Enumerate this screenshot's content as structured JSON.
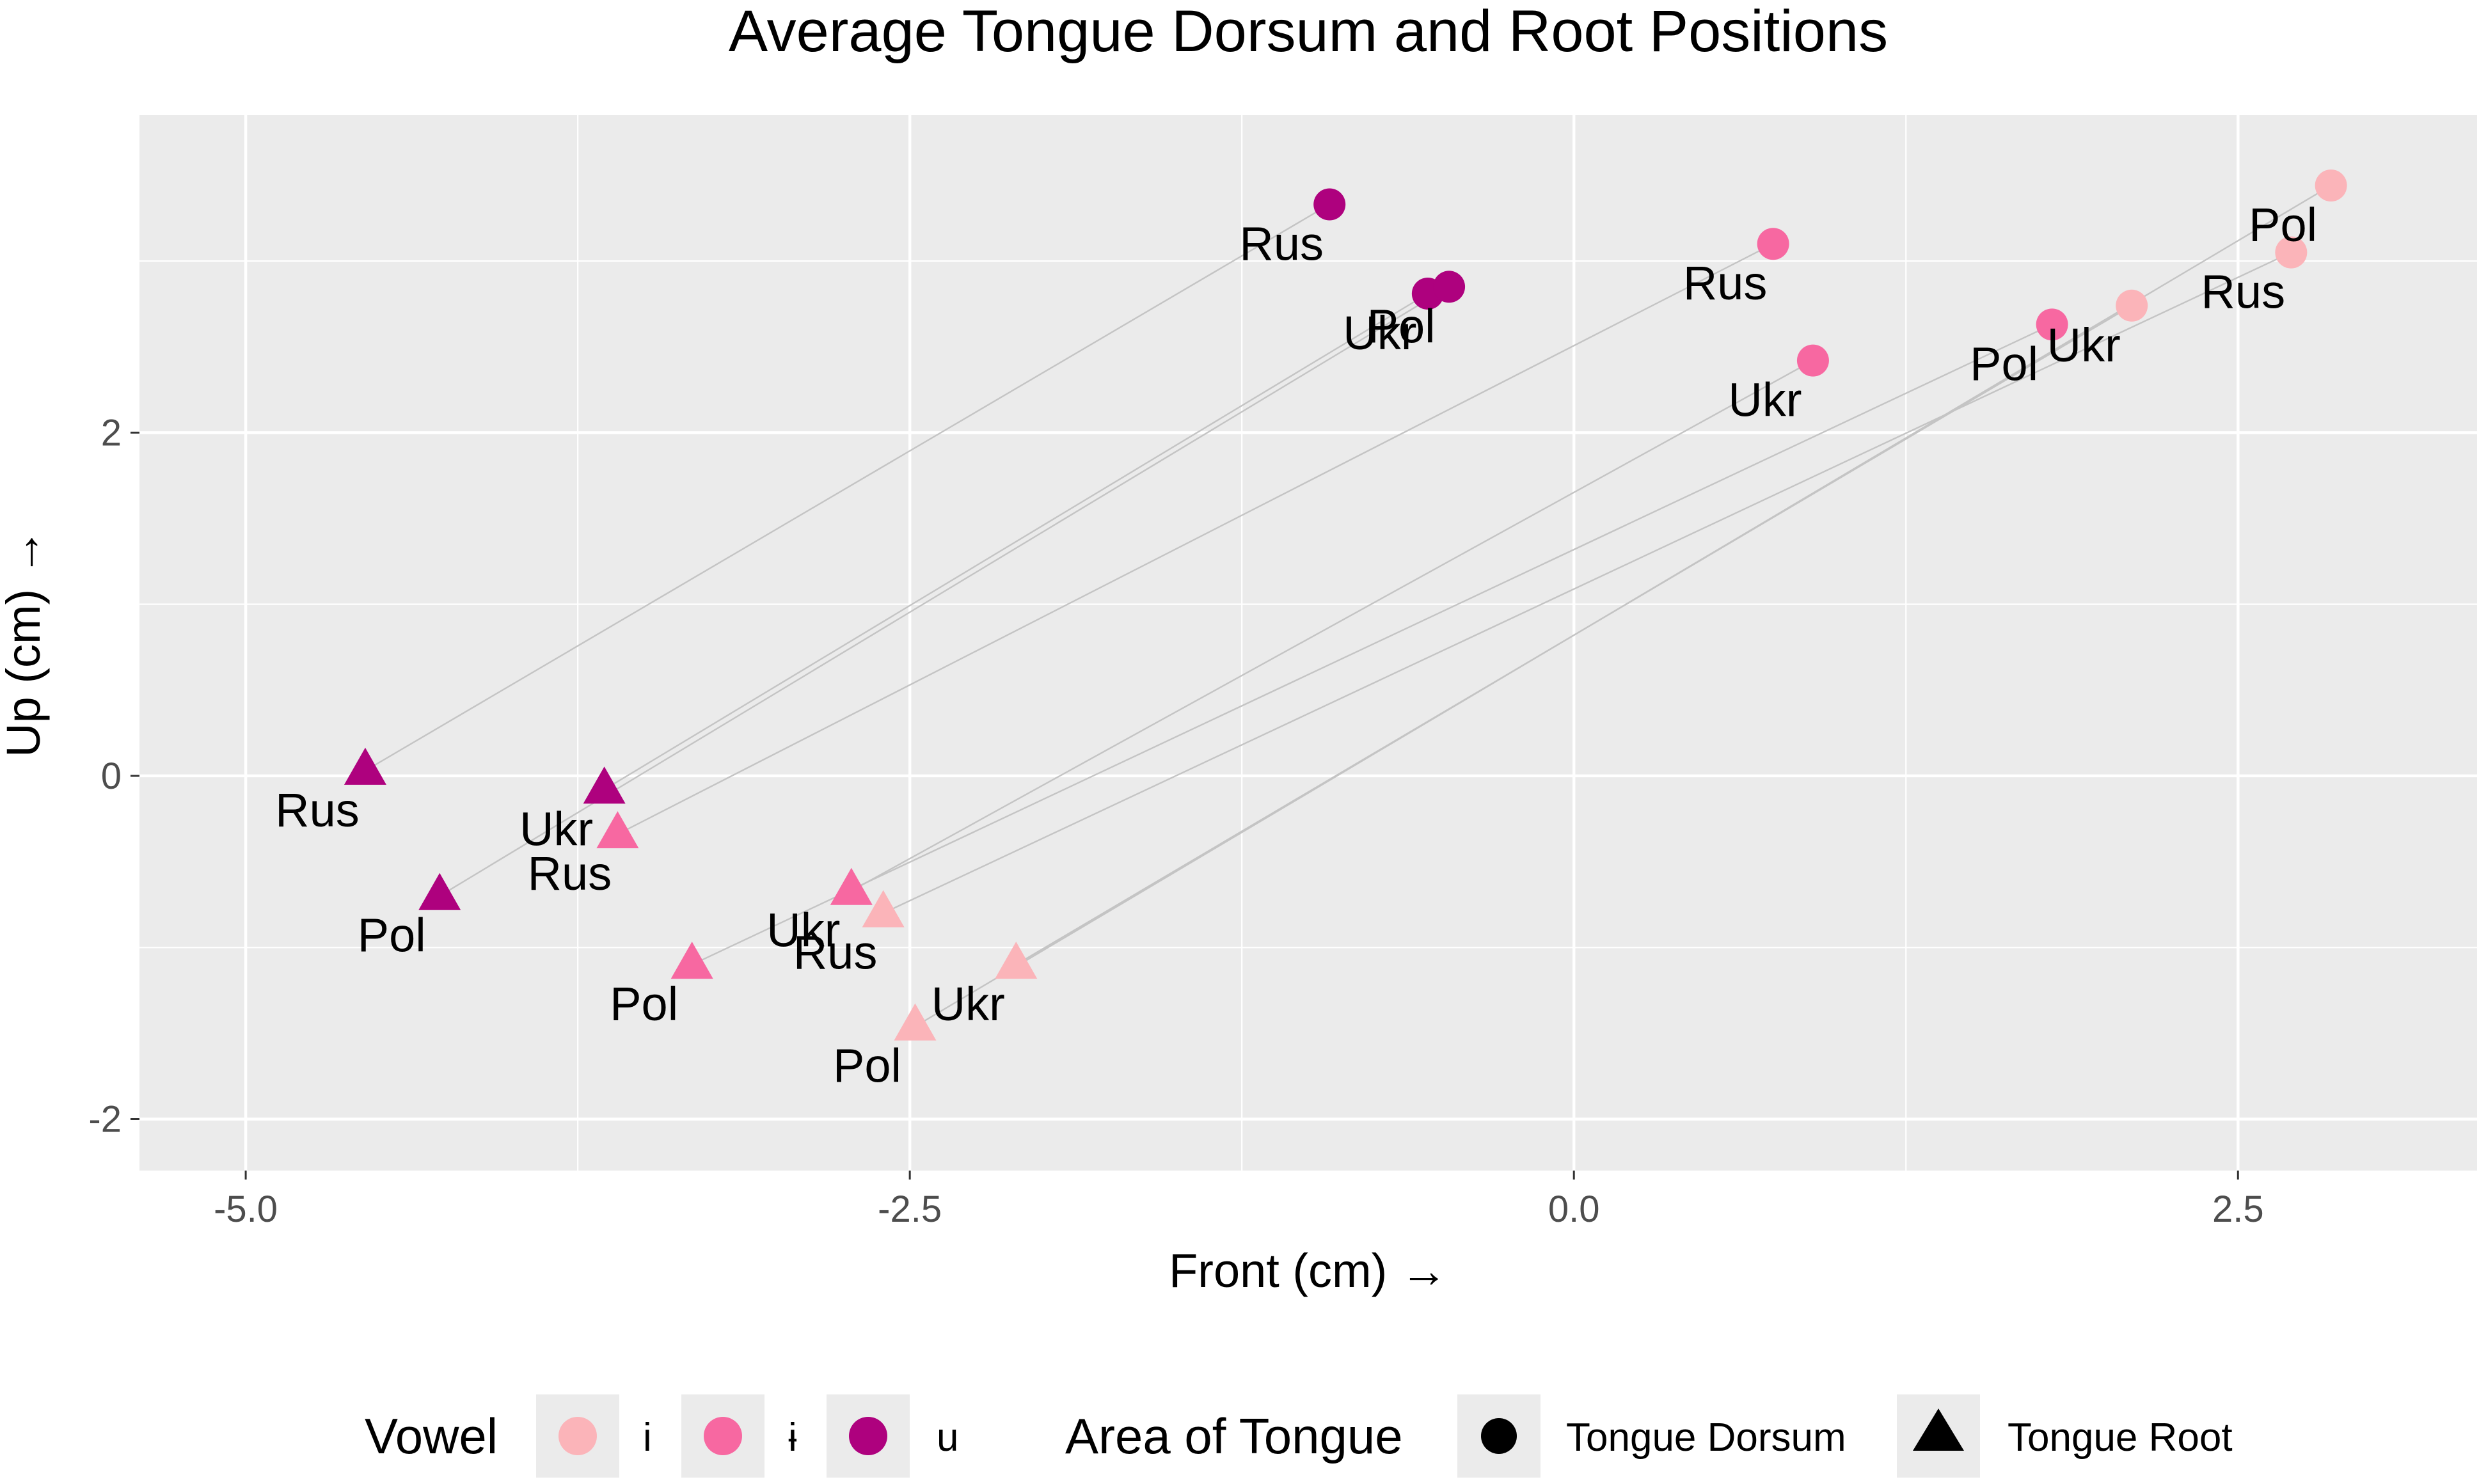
{
  "chart_data": {
    "type": "scatter",
    "title": "Average Tongue Dorsum and Root Positions",
    "xlabel": "Front (cm) →",
    "ylabel": "Up (cm) →",
    "xlim": [
      -5.4,
      3.4
    ],
    "ylim": [
      -2.3,
      3.85
    ],
    "x_ticks": [
      -5.0,
      -2.5,
      0.0,
      2.5
    ],
    "x_tick_labels": [
      "-5.0",
      "-2.5",
      "0.0",
      "2.5"
    ],
    "y_ticks": [
      -2,
      0,
      2
    ],
    "y_tick_labels": [
      "-2",
      "0",
      "2"
    ],
    "grid": true,
    "vowel_legend": {
      "title": "Vowel",
      "items": [
        {
          "label": "i",
          "color": "#FBB4B9"
        },
        {
          "label": "ɨ",
          "color": "#F768A1"
        },
        {
          "label": "u",
          "color": "#AE017E"
        }
      ]
    },
    "area_legend": {
      "title": "Area of Tongue",
      "items": [
        {
          "label": "Tongue Dorsum",
          "shape": "circle"
        },
        {
          "label": "Tongue Root",
          "shape": "triangle"
        }
      ]
    },
    "series": [
      {
        "vowel": "u",
        "language": "Rus",
        "dorsum": [
          -0.92,
          3.33
        ],
        "root": [
          -4.55,
          0.03
        ]
      },
      {
        "vowel": "u",
        "language": "Ukr",
        "dorsum": [
          -0.55,
          2.81
        ],
        "root": [
          -3.65,
          -0.08
        ]
      },
      {
        "vowel": "u",
        "language": "Pol",
        "dorsum": [
          -0.47,
          2.85
        ],
        "root": [
          -4.27,
          -0.7
        ]
      },
      {
        "vowel": "ɨ",
        "language": "Rus",
        "dorsum": [
          0.75,
          3.1
        ],
        "root": [
          -3.6,
          -0.34
        ]
      },
      {
        "vowel": "ɨ",
        "language": "Ukr",
        "dorsum": [
          0.9,
          2.42
        ],
        "root": [
          -2.72,
          -0.67
        ]
      },
      {
        "vowel": "ɨ",
        "language": "Pol",
        "dorsum": [
          1.8,
          2.63
        ],
        "root": [
          -3.32,
          -1.1
        ]
      },
      {
        "vowel": "i",
        "language": "Pol",
        "dorsum": [
          2.85,
          3.44
        ],
        "root": [
          -2.48,
          -1.46
        ]
      },
      {
        "vowel": "i",
        "language": "Rus",
        "dorsum": [
          2.7,
          3.05
        ],
        "root": [
          -2.6,
          -0.8
        ]
      },
      {
        "vowel": "i",
        "language": "Ukr",
        "dorsum": [
          2.1,
          2.74
        ],
        "root": [
          -2.1,
          -1.1
        ]
      }
    ]
  }
}
